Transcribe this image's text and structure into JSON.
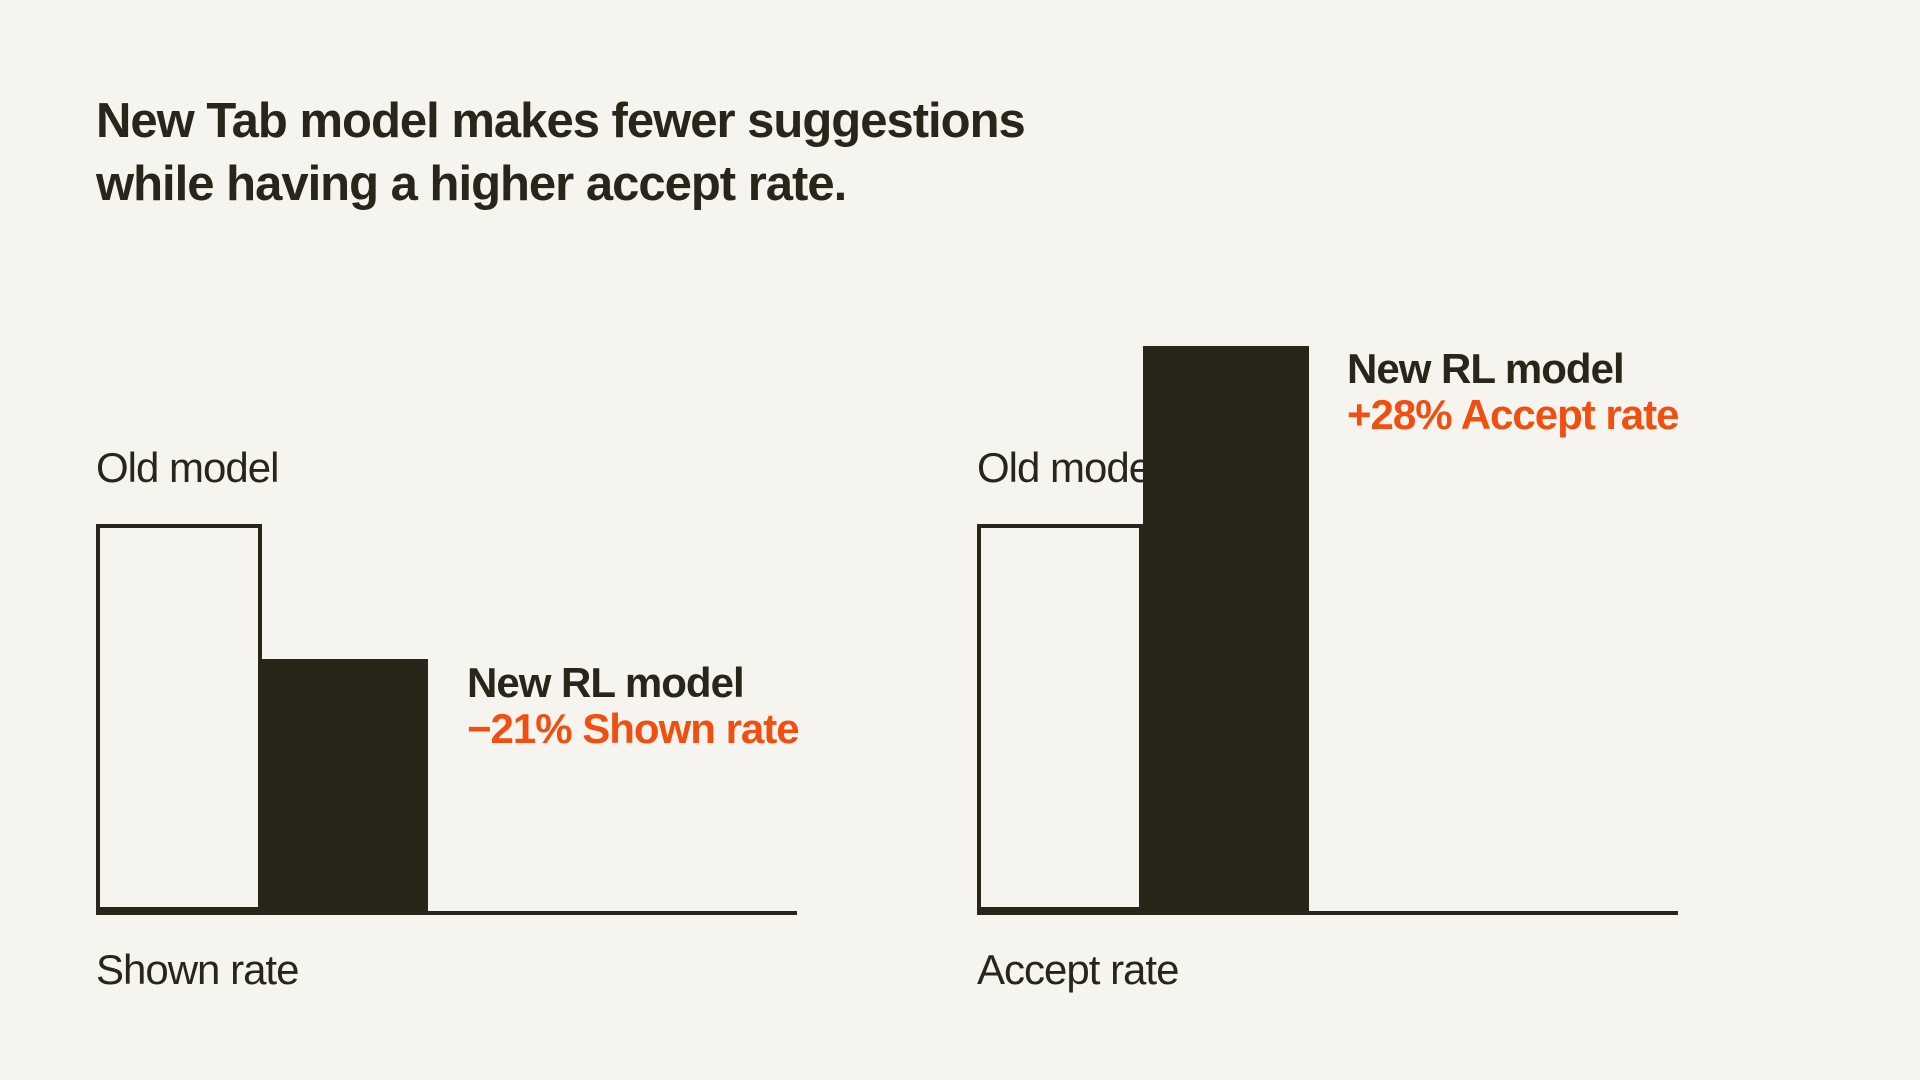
{
  "colors": {
    "background": "#f5f4ee",
    "ink": "#282519",
    "accent": "#f04f10"
  },
  "title": {
    "line1": "New Tab model makes fewer suggestions",
    "line2": "while having a higher accept rate."
  },
  "chart_data": [
    {
      "type": "bar",
      "name": "shown-rate",
      "categories": [
        "Old model",
        "New RL model"
      ],
      "series": [
        {
          "name": "bar height relative to old model (old = 1.0)",
          "values": [
            1.0,
            0.65
          ]
        }
      ],
      "delta_pct": -21,
      "old_bar_label": "Old model",
      "annotation": {
        "title": "New RL model",
        "delta": "−21% Shown rate"
      },
      "xlabel": "Shown rate",
      "ylabel": "",
      "axis_note": "schematic comparison — no numeric axis or gridlines",
      "legend": "none"
    },
    {
      "type": "bar",
      "name": "accept-rate",
      "categories": [
        "Old model",
        "New RL model"
      ],
      "series": [
        {
          "name": "bar height relative to old model (old = 1.0)",
          "values": [
            1.0,
            1.46
          ]
        }
      ],
      "delta_pct": 28,
      "old_bar_label": "Old model",
      "annotation": {
        "title": "New RL model",
        "delta": "+28% Accept rate"
      },
      "xlabel": "Accept rate",
      "ylabel": "",
      "axis_note": "schematic comparison — no numeric axis or gridlines",
      "legend": "none"
    }
  ]
}
